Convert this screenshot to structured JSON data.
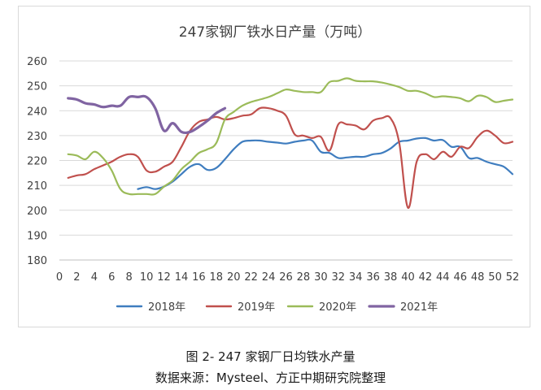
{
  "chart_data": {
    "type": "line",
    "title": "247家钢厂铁水日产量（万吨）",
    "xlabel": "",
    "ylabel": "",
    "xlim": [
      0,
      52
    ],
    "ylim": [
      180,
      260
    ],
    "x_ticks": [
      0,
      2,
      4,
      6,
      8,
      10,
      12,
      14,
      16,
      18,
      20,
      22,
      24,
      26,
      28,
      30,
      32,
      34,
      36,
      38,
      40,
      42,
      44,
      46,
      48,
      50,
      52
    ],
    "y_ticks": [
      180,
      190,
      200,
      210,
      220,
      230,
      240,
      250,
      260
    ],
    "grid": "horizontal",
    "legend_position": "bottom",
    "series": [
      {
        "name": "2018年",
        "color": "#3f7dbf",
        "x": [
          9,
          10,
          11,
          12,
          13,
          14,
          15,
          16,
          17,
          18,
          19,
          20,
          21,
          22,
          23,
          24,
          25,
          26,
          27,
          28,
          29,
          30,
          31,
          32,
          33,
          34,
          35,
          36,
          37,
          38,
          39,
          40,
          41,
          42,
          43,
          44,
          45,
          46,
          47,
          48,
          49,
          50,
          51,
          52
        ],
        "values": [
          208.5,
          209.3,
          208.5,
          209.5,
          211.5,
          214.5,
          217.5,
          218.5,
          216.2,
          217.0,
          220.5,
          224.5,
          227.5,
          228.0,
          228.0,
          227.5,
          227.2,
          226.8,
          227.5,
          228.0,
          228.0,
          223.5,
          223.0,
          221.0,
          221.2,
          221.5,
          221.5,
          222.5,
          223.0,
          224.8,
          227.5,
          228.0,
          228.8,
          229.0,
          228.0,
          228.2,
          225.5,
          225.5,
          221.0,
          221.0,
          219.5,
          218.5,
          217.5,
          214.5
        ]
      },
      {
        "name": "2019年",
        "color": "#c0504d",
        "x": [
          1,
          2,
          3,
          4,
          5,
          6,
          7,
          8,
          9,
          10,
          11,
          12,
          13,
          14,
          15,
          16,
          17,
          18,
          19,
          20,
          21,
          22,
          23,
          24,
          25,
          26,
          27,
          28,
          29,
          30,
          31,
          32,
          33,
          34,
          35,
          36,
          37,
          38,
          39,
          40,
          41,
          42,
          43,
          44,
          45,
          46,
          47,
          48,
          49,
          50,
          51,
          52
        ],
        "values": [
          213.0,
          214.0,
          214.5,
          216.5,
          218.0,
          219.5,
          221.5,
          222.5,
          221.5,
          216.0,
          215.5,
          217.5,
          219.5,
          225.5,
          232.0,
          235.5,
          236.5,
          237.5,
          236.5,
          237.0,
          238.0,
          238.5,
          241.0,
          241.0,
          240.0,
          238.0,
          230.5,
          230.0,
          229.0,
          229.5,
          224.0,
          234.5,
          234.5,
          234.0,
          232.5,
          236.0,
          237.0,
          237.0,
          227.0,
          201.0,
          219.5,
          222.5,
          220.5,
          223.5,
          221.5,
          225.5,
          225.0,
          229.5,
          232.0,
          230.0,
          227.0,
          227.5
        ]
      },
      {
        "name": "2020年",
        "color": "#9bbb59",
        "x": [
          1,
          2,
          3,
          4,
          5,
          6,
          7,
          8,
          9,
          10,
          11,
          12,
          13,
          14,
          15,
          16,
          17,
          18,
          19,
          20,
          21,
          22,
          23,
          24,
          25,
          26,
          27,
          28,
          29,
          30,
          31,
          32,
          33,
          34,
          35,
          36,
          37,
          38,
          39,
          40,
          41,
          42,
          43,
          44,
          45,
          46,
          47,
          48,
          49,
          50,
          51,
          52
        ],
        "values": [
          222.5,
          222.0,
          220.5,
          223.5,
          221.0,
          216.0,
          208.5,
          206.5,
          206.5,
          206.5,
          206.5,
          209.5,
          212.0,
          216.5,
          219.5,
          223.0,
          224.5,
          227.0,
          236.5,
          239.5,
          242.0,
          243.5,
          244.5,
          245.5,
          247.0,
          248.5,
          248.0,
          247.5,
          247.5,
          247.5,
          251.5,
          252.0,
          253.0,
          252.0,
          251.8,
          251.8,
          251.3,
          250.5,
          249.5,
          248.0,
          248.0,
          247.0,
          245.5,
          245.8,
          245.5,
          245.0,
          243.8,
          246.0,
          245.5,
          243.5,
          244.0,
          244.5
        ]
      },
      {
        "name": "2021年",
        "color": "#8064a2",
        "x": [
          1,
          2,
          3,
          4,
          5,
          6,
          7,
          8,
          9,
          10,
          11,
          12,
          13,
          14,
          15,
          16,
          17,
          18,
          19
        ],
        "values": [
          245.0,
          244.5,
          243.0,
          242.5,
          241.5,
          242.0,
          242.0,
          245.5,
          245.5,
          245.5,
          241.0,
          232.0,
          235.0,
          231.5,
          231.5,
          233.5,
          236.0,
          239.0,
          241.0
        ]
      }
    ]
  },
  "captions": {
    "figure": "图  2- 247 家钢厂日均铁水产量",
    "source": "数据来源：Mysteel、方正中期研究院整理"
  }
}
